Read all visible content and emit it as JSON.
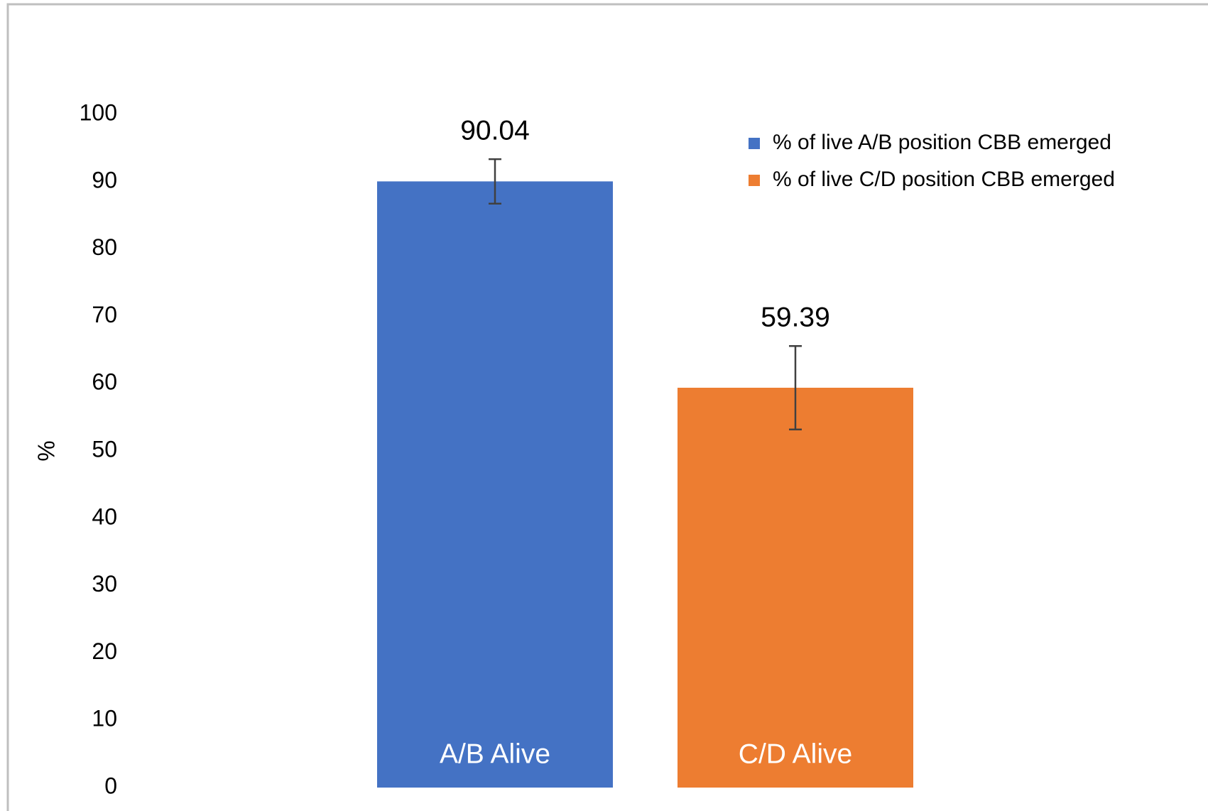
{
  "chart_data": {
    "type": "bar",
    "ylabel": "%",
    "categories": [
      "A/B Alive",
      "C/D Alive"
    ],
    "series": [
      {
        "name": "% of live A/B position CBB emerged",
        "color": "#4472c4",
        "values": [
          90.04,
          null
        ],
        "errors": [
          3.3,
          null
        ]
      },
      {
        "name": "% of live C/D position CBB emerged",
        "color": "#ed7d31",
        "values": [
          null,
          59.39
        ],
        "errors": [
          null,
          6.2
        ]
      }
    ],
    "ylim": [
      0,
      100
    ],
    "yticks": [
      0,
      10,
      20,
      30,
      40,
      50,
      60,
      70,
      80,
      90,
      100
    ],
    "grid": false,
    "legend": "upper right"
  }
}
